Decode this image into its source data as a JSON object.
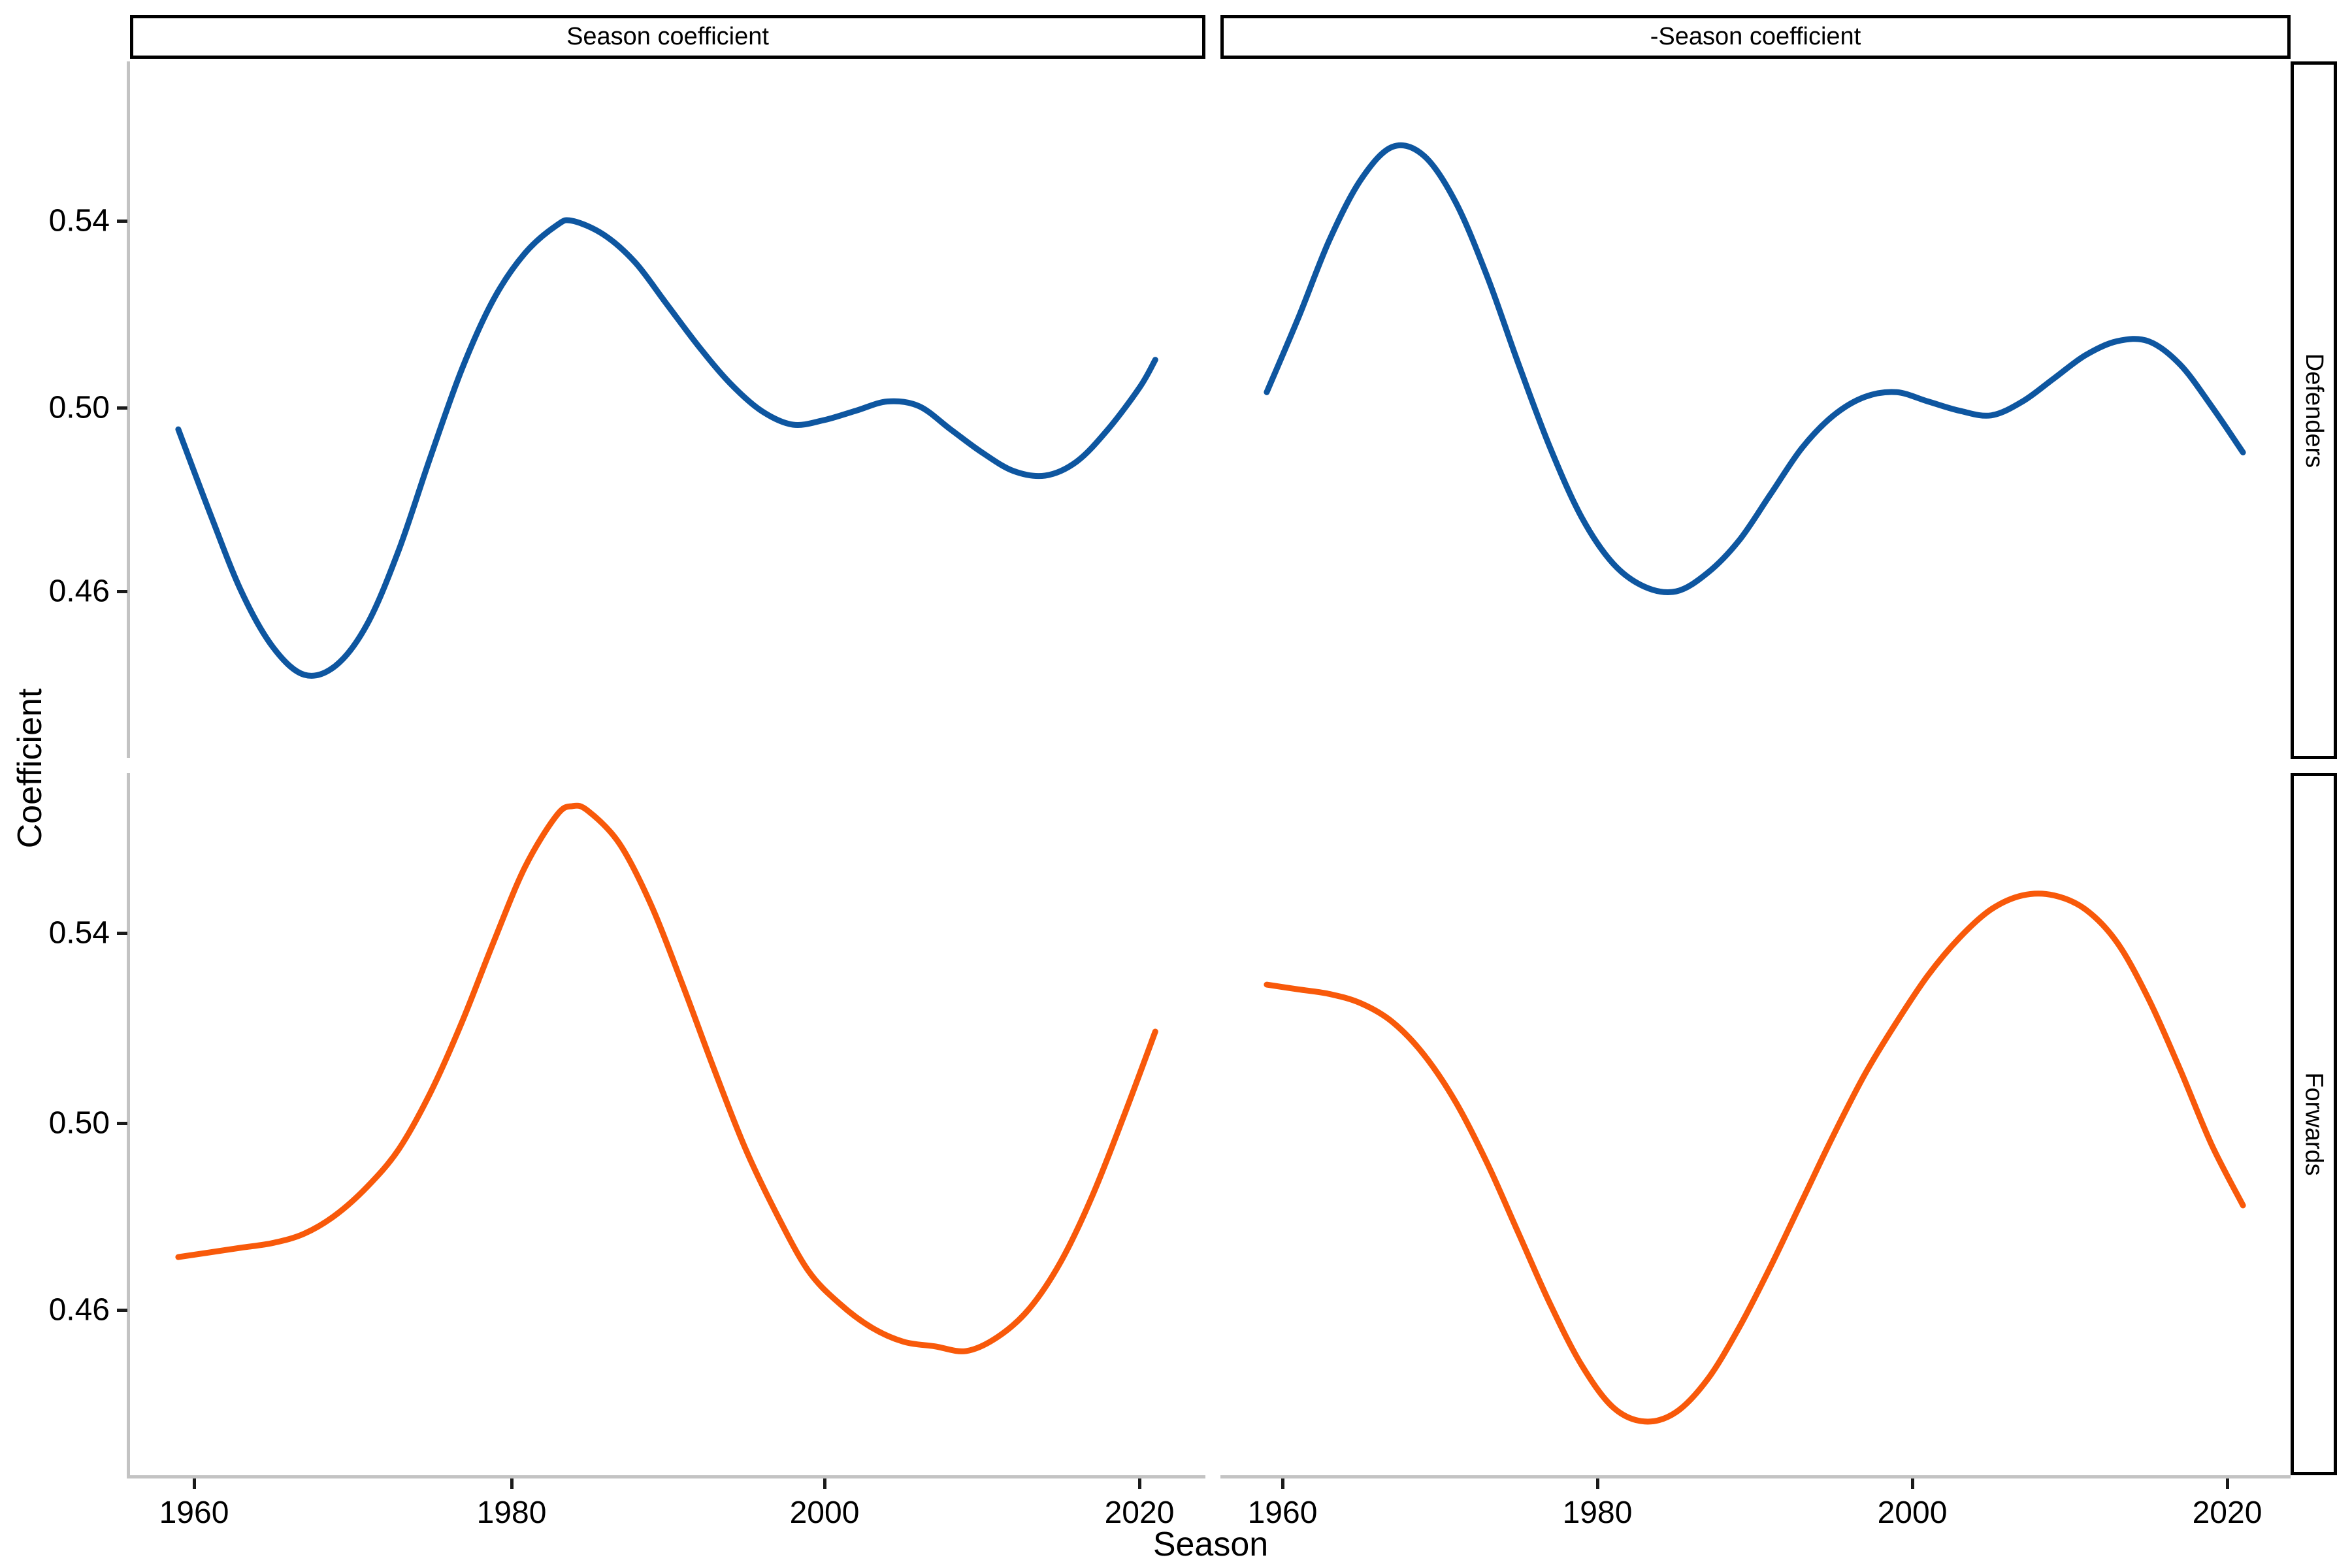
{
  "chart_data": {
    "type": "line",
    "title": "",
    "xlabel": "Season",
    "ylabel": "Coefficient",
    "facet_columns": [
      "Season coefficient",
      "-Season coefficient"
    ],
    "facet_rows": [
      "Defenders",
      "Forwards"
    ],
    "x_ticks": [
      "1960",
      "1980",
      "2000",
      "2020"
    ],
    "y_ticks": [
      "0.54",
      "0.50",
      "0.46"
    ],
    "x_range_years": [
      1959,
      2021
    ],
    "grid": "off",
    "legend": "none",
    "colors": {
      "defenders_line": "#0E56A0",
      "forwards_line": "#F8590A",
      "axis_line": "#C3C3C3",
      "strip_border": "#000000"
    },
    "series": [
      {
        "name": "Defenders - Season coefficient",
        "facet_row": "Defenders",
        "facet_col": "Season coefficient",
        "color": "#0E56A0",
        "points": [
          [
            1959,
            0.495
          ],
          [
            1961,
            0.477
          ],
          [
            1963,
            0.46
          ],
          [
            1965,
            0.448
          ],
          [
            1967,
            0.442
          ],
          [
            1969,
            0.444
          ],
          [
            1971,
            0.453
          ],
          [
            1973,
            0.469
          ],
          [
            1975,
            0.489
          ],
          [
            1977,
            0.508
          ],
          [
            1979,
            0.523
          ],
          [
            1981,
            0.533
          ],
          [
            1983,
            0.539
          ],
          [
            1984,
            0.54
          ],
          [
            1986,
            0.537
          ],
          [
            1988,
            0.531
          ],
          [
            1990,
            0.522
          ],
          [
            1992,
            0.513
          ],
          [
            1994,
            0.505
          ],
          [
            1996,
            0.499
          ],
          [
            1998,
            0.496
          ],
          [
            2000,
            0.497
          ],
          [
            2002,
            0.499
          ],
          [
            2004,
            0.501
          ],
          [
            2006,
            0.5
          ],
          [
            2008,
            0.495
          ],
          [
            2010,
            0.49
          ],
          [
            2012,
            0.486
          ],
          [
            2014,
            0.485
          ],
          [
            2016,
            0.488
          ],
          [
            2018,
            0.495
          ],
          [
            2020,
            0.504
          ],
          [
            2021,
            0.51
          ]
        ]
      },
      {
        "name": "Defenders - minus Season coefficient",
        "facet_row": "Defenders",
        "facet_col": "-Season coefficient",
        "color": "#0E56A0",
        "points": [
          [
            1959,
            0.503
          ],
          [
            1961,
            0.519
          ],
          [
            1963,
            0.536
          ],
          [
            1965,
            0.549
          ],
          [
            1967,
            0.556
          ],
          [
            1969,
            0.554
          ],
          [
            1971,
            0.544
          ],
          [
            1973,
            0.528
          ],
          [
            1975,
            0.509
          ],
          [
            1977,
            0.491
          ],
          [
            1979,
            0.476
          ],
          [
            1981,
            0.466
          ],
          [
            1983,
            0.461
          ],
          [
            1985,
            0.46
          ],
          [
            1987,
            0.464
          ],
          [
            1989,
            0.471
          ],
          [
            1991,
            0.481
          ],
          [
            1993,
            0.491
          ],
          [
            1995,
            0.498
          ],
          [
            1997,
            0.502
          ],
          [
            1999,
            0.503
          ],
          [
            2001,
            0.501
          ],
          [
            2003,
            0.499
          ],
          [
            2005,
            0.498
          ],
          [
            2007,
            0.501
          ],
          [
            2009,
            0.506
          ],
          [
            2011,
            0.511
          ],
          [
            2013,
            0.514
          ],
          [
            2015,
            0.514
          ],
          [
            2017,
            0.509
          ],
          [
            2019,
            0.5
          ],
          [
            2021,
            0.49
          ]
        ]
      },
      {
        "name": "Forwards - Season coefficient",
        "facet_row": "Forwards",
        "facet_col": "Season coefficient",
        "color": "#F8590A",
        "points": [
          [
            1959,
            0.471
          ],
          [
            1961,
            0.472
          ],
          [
            1963,
            0.473
          ],
          [
            1965,
            0.474
          ],
          [
            1967,
            0.476
          ],
          [
            1969,
            0.48
          ],
          [
            1971,
            0.486
          ],
          [
            1973,
            0.494
          ],
          [
            1975,
            0.506
          ],
          [
            1977,
            0.521
          ],
          [
            1979,
            0.538
          ],
          [
            1981,
            0.554
          ],
          [
            1983,
            0.565
          ],
          [
            1984,
            0.567
          ],
          [
            1985,
            0.566
          ],
          [
            1987,
            0.559
          ],
          [
            1989,
            0.546
          ],
          [
            1991,
            0.529
          ],
          [
            1993,
            0.511
          ],
          [
            1995,
            0.494
          ],
          [
            1997,
            0.48
          ],
          [
            1999,
            0.468
          ],
          [
            2001,
            0.461
          ],
          [
            2003,
            0.456
          ],
          [
            2005,
            0.453
          ],
          [
            2007,
            0.452
          ],
          [
            2009,
            0.451
          ],
          [
            2011,
            0.454
          ],
          [
            2013,
            0.46
          ],
          [
            2015,
            0.47
          ],
          [
            2017,
            0.484
          ],
          [
            2019,
            0.501
          ],
          [
            2021,
            0.519
          ]
        ]
      },
      {
        "name": "Forwards - minus Season coefficient",
        "facet_row": "Forwards",
        "facet_col": "-Season coefficient",
        "color": "#F8590A",
        "points": [
          [
            1959,
            0.529
          ],
          [
            1961,
            0.528
          ],
          [
            1963,
            0.527
          ],
          [
            1965,
            0.525
          ],
          [
            1967,
            0.521
          ],
          [
            1969,
            0.514
          ],
          [
            1971,
            0.504
          ],
          [
            1973,
            0.491
          ],
          [
            1975,
            0.476
          ],
          [
            1977,
            0.461
          ],
          [
            1979,
            0.448
          ],
          [
            1981,
            0.439
          ],
          [
            1983,
            0.436
          ],
          [
            1985,
            0.438
          ],
          [
            1987,
            0.445
          ],
          [
            1989,
            0.456
          ],
          [
            1991,
            0.469
          ],
          [
            1993,
            0.483
          ],
          [
            1995,
            0.497
          ],
          [
            1997,
            0.51
          ],
          [
            1999,
            0.521
          ],
          [
            2001,
            0.531
          ],
          [
            2003,
            0.539
          ],
          [
            2005,
            0.545
          ],
          [
            2007,
            0.548
          ],
          [
            2009,
            0.548
          ],
          [
            2011,
            0.545
          ],
          [
            2013,
            0.538
          ],
          [
            2015,
            0.526
          ],
          [
            2017,
            0.511
          ],
          [
            2019,
            0.495
          ],
          [
            2021,
            0.482
          ]
        ]
      }
    ]
  }
}
